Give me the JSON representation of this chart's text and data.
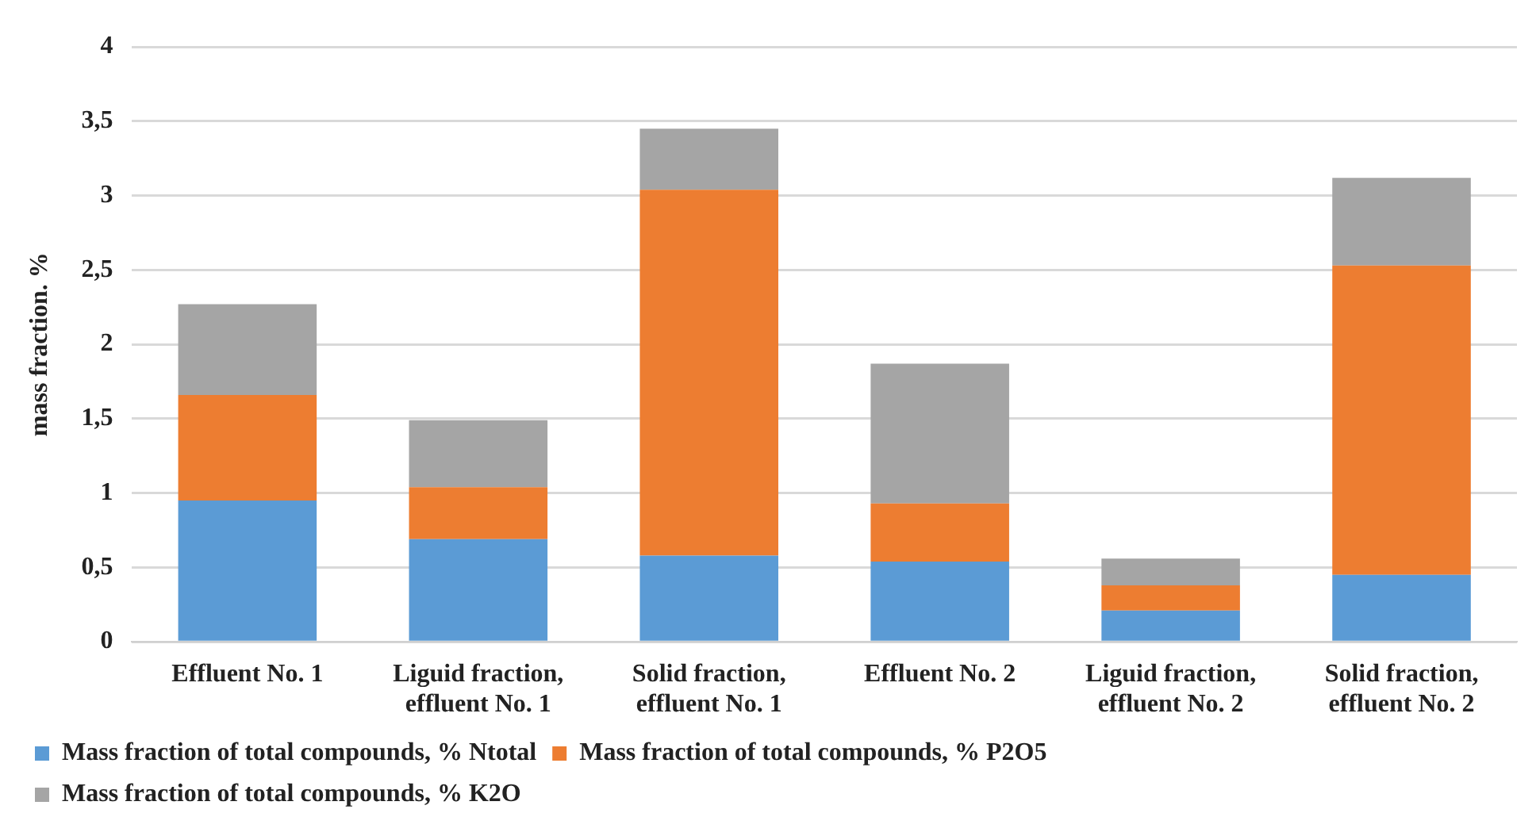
{
  "chart_data": {
    "type": "bar",
    "stacked": true,
    "ylabel": "mass fraction. %",
    "categories": [
      "Effluent No. 1",
      "Liguid fraction, effluent No. 1",
      "Solid fraction, effluent No. 1",
      "Effluent No. 2",
      "Liguid fraction, effluent No. 2",
      "Solid fraction, effluent No. 2"
    ],
    "series": [
      {
        "name": "Mass fraction of total compounds, % Ntotal",
        "color": "#5b9bd5",
        "values": [
          0.95,
          0.69,
          0.58,
          0.54,
          0.21,
          0.45
        ]
      },
      {
        "name": "Mass fraction of total compounds, % P2O5",
        "color": "#ed7d31",
        "values": [
          0.71,
          0.35,
          2.46,
          0.39,
          0.17,
          2.08
        ]
      },
      {
        "name": "Mass fraction of total compounds, % K2O",
        "color": "#a5a5a5",
        "values": [
          0.61,
          0.45,
          0.41,
          0.94,
          0.18,
          0.59
        ]
      }
    ],
    "ylim": [
      0,
      4
    ],
    "yticks": [
      0,
      {
        "value": 0.5,
        "label": "0,5"
      },
      1,
      {
        "value": 1.5,
        "label": "1,5"
      },
      2,
      {
        "value": 2.5,
        "label": "2,5"
      },
      3,
      {
        "value": 3.5,
        "label": "3,5"
      },
      4
    ],
    "grid": "y",
    "legend": "bottom"
  }
}
